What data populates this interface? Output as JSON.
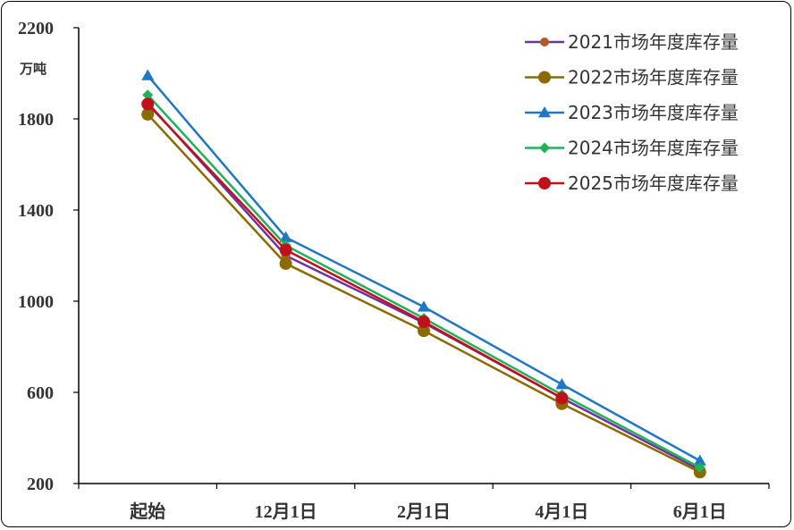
{
  "chart_data": {
    "type": "line",
    "categories": [
      "起始",
      "12月1日",
      "2月1日",
      "4月1日",
      "6月1日"
    ],
    "ylabel": "万吨",
    "ylim": [
      200,
      2200
    ],
    "yticks": [
      2200,
      1800,
      1400,
      1000,
      600,
      200
    ],
    "grid": false,
    "legend_position": "top-right",
    "series": [
      {
        "name": "2021市场年度库存量",
        "color": "#7030a0",
        "marker": "circle-small",
        "values": [
          1870,
          1200,
          905,
          575,
          260
        ]
      },
      {
        "name": "2022市场年度库存量",
        "color": "#8b6a00",
        "marker": "circle",
        "values": [
          1820,
          1165,
          870,
          550,
          250
        ]
      },
      {
        "name": "2023市场年度库存量",
        "color": "#1f77c4",
        "marker": "triangle",
        "values": [
          1990,
          1280,
          975,
          635,
          300
        ]
      },
      {
        "name": "2024市场年度库存量",
        "color": "#22b05a",
        "marker": "diamond",
        "values": [
          1905,
          1245,
          925,
          590,
          270
        ]
      },
      {
        "name": "2025市场年度库存量",
        "color": "#c0101a",
        "marker": "circle",
        "values": [
          1865,
          1225,
          910,
          575,
          null
        ]
      }
    ]
  }
}
